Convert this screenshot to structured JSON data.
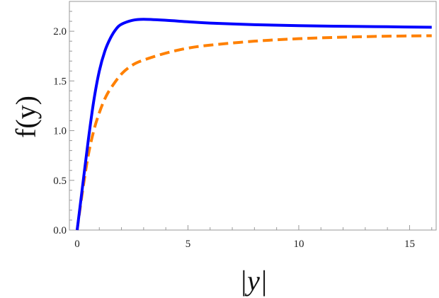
{
  "chart_data": {
    "type": "line",
    "title": "",
    "xlabel": "|y|",
    "ylabel": "f(y)",
    "xlim": [
      -0.35,
      16.2
    ],
    "ylim": [
      0,
      2.3
    ],
    "xticks": [
      0,
      5,
      10,
      15
    ],
    "yticks": [
      0.0,
      0.5,
      1.0,
      1.5,
      2.0
    ],
    "xtick_labels": [
      "0",
      "5",
      "10",
      "15"
    ],
    "ytick_labels": [
      "0.0",
      "0.5",
      "1.0",
      "1.5",
      "2.0"
    ],
    "grid": false,
    "series": [
      {
        "color": "#0000ff",
        "style": "solid",
        "x": [
          0,
          0.25,
          0.5,
          0.75,
          1,
          1.25,
          1.5,
          1.75,
          2,
          2.5,
          3,
          4,
          5,
          6,
          8,
          10,
          12,
          14,
          16
        ],
        "y": [
          0,
          0.45,
          0.9,
          1.3,
          1.6,
          1.8,
          1.93,
          2.02,
          2.07,
          2.11,
          2.12,
          2.11,
          2.095,
          2.082,
          2.066,
          2.056,
          2.05,
          2.045,
          2.04
        ]
      },
      {
        "color": "#ff8000",
        "style": "dashed",
        "x": [
          0,
          0.25,
          0.5,
          0.75,
          1,
          1.25,
          1.5,
          2,
          2.5,
          3,
          4,
          5,
          6,
          8,
          10,
          12,
          14,
          16
        ],
        "y": [
          0,
          0.4,
          0.75,
          1.0,
          1.18,
          1.32,
          1.42,
          1.57,
          1.66,
          1.71,
          1.78,
          1.83,
          1.86,
          1.9,
          1.925,
          1.94,
          1.95,
          1.955
        ]
      }
    ]
  }
}
